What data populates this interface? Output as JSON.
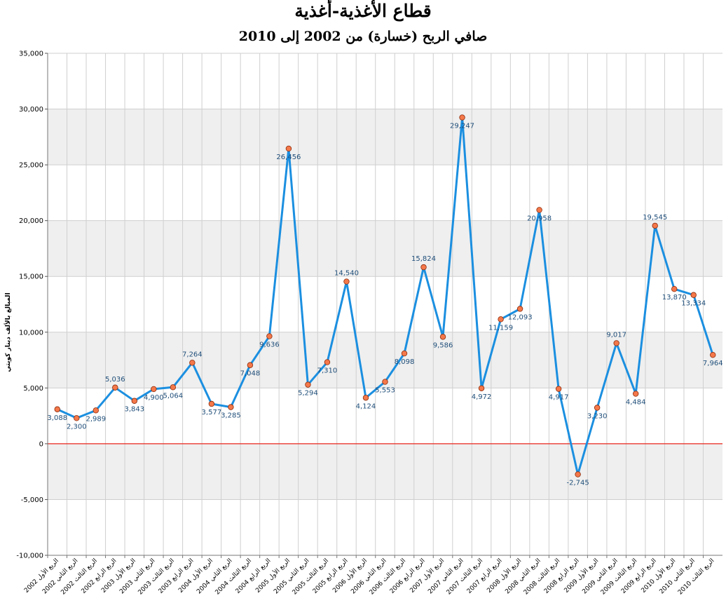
{
  "chart_data": {
    "type": "line",
    "title": "قطاع الأغذية-أغذية",
    "subtitle": "صافي الربح (خسارة) من 2002 إلى 2010",
    "ylabel": "المبالغ بالألف دينار كويتي",
    "xlabel": "",
    "ylim": [
      -10000,
      35000
    ],
    "yticks": [
      -10000,
      -5000,
      0,
      5000,
      10000,
      15000,
      20000,
      25000,
      30000,
      35000
    ],
    "ytick_labels": [
      "-10,000",
      "-5,000",
      "0",
      "5,000",
      "10,000",
      "15,000",
      "20,000",
      "25,000",
      "30,000",
      "35,000"
    ],
    "grid": "both",
    "legend": "none",
    "categories": [
      "الربع الأول 2002",
      "الربع الثاني 2002",
      "الربع الثالث 2002",
      "الربع الرابع 2002",
      "الربع الأول 2003",
      "الربع الثاني 2003",
      "الربع الثالث 2003",
      "الربع الرابع 2003",
      "الربع الأول 2004",
      "الربع الثاني 2004",
      "الربع الثالث 2004",
      "الربع الرابع 2004",
      "الربع الأول 2005",
      "الربع الثاني 2005",
      "الربع الثالث 2005",
      "الربع الرابع 2005",
      "الربع الأول 2006",
      "الربع الثاني 2006",
      "الربع الثالث 2006",
      "الربع الرابع 2006",
      "الربع الأول 2007",
      "الربع الثاني 2007",
      "الربع الثالث 2007",
      "الربع الرابع 2007",
      "الربع الأول 2008",
      "الربع الثاني 2008",
      "الربع الثالث 2008",
      "الربع الرابع 2008",
      "الربع الأول 2009",
      "الربع الثاني 2009",
      "الربع الثالث 2009",
      "الربع الرابع 2009",
      "الربع الأول 2010",
      "الربع الثاني 2010",
      "الربع الثالث 2010"
    ],
    "series": [
      {
        "values": [
          3088,
          2300,
          2989,
          5036,
          3843,
          4900,
          5064,
          7264,
          3577,
          3285,
          7048,
          9636,
          26456,
          5294,
          7310,
          14540,
          4124,
          5553,
          8098,
          15824,
          9586,
          29247,
          4972,
          11159,
          12093,
          20958,
          4917,
          -2745,
          3230,
          9017,
          4484,
          19545,
          13870,
          13334,
          7964
        ],
        "labels": [
          "3,088",
          "2,300",
          "2,989",
          "5,036",
          "3,843",
          "4,900",
          "5,064",
          "7,264",
          "3,577",
          "3,285",
          "7,048",
          "9,636",
          "26,456",
          "5,294",
          "7,310",
          "14,540",
          "4,124",
          "5,553",
          "8,098",
          "15,824",
          "9,586",
          "29,247",
          "4,972",
          "11,159",
          "12,093",
          "20,958",
          "4,917",
          "-2,745",
          "3,230",
          "9,017",
          "4,484",
          "19,545",
          "13,870",
          "13,334",
          "7,964"
        ]
      }
    ],
    "colors": {
      "line": "#1b8fe0",
      "marker_fill": "#f4784a",
      "marker_stroke": "#8b2a0a",
      "zero_line": "#e8251b",
      "band": "#efefef",
      "grid": "#cfcfcf",
      "data_label": "#1f4e79"
    }
  }
}
